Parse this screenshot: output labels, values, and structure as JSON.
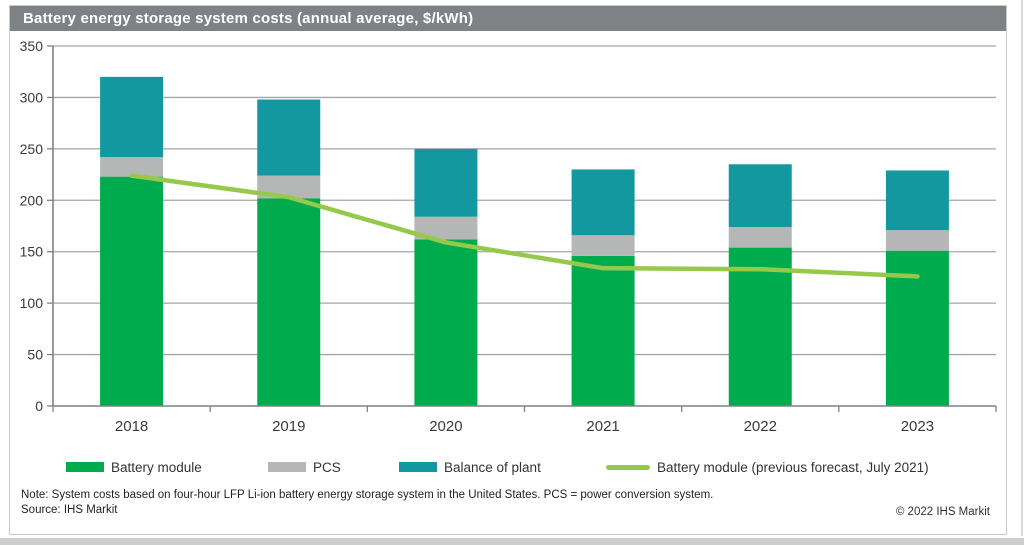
{
  "title": "Battery energy storage system costs (annual average, $/kWh)",
  "footer": {
    "note": "Note: System costs based on four-hour LFP Li-ion battery energy storage system in the United States. PCS = power conversion system.",
    "source": "Source: IHS Markit",
    "copyright": "© 2022 IHS Markit"
  },
  "colors": {
    "banner_bg": "#7f8285",
    "banner_text": "#ffffff",
    "battery_module": "#00ab4e",
    "pcs": "#b4b7b6",
    "balance_of_plant": "#14989f",
    "forecast_line": "#96c94b",
    "gridline": "#a4a6a5",
    "axis": "#7f8283",
    "tick_text": "#3a3a3a"
  },
  "chart_data": {
    "type": "bar",
    "subtype": "stacked-bars-with-line-overlay",
    "title": "Battery energy storage system costs (annual average, $/kWh)",
    "categories": [
      "2018",
      "2019",
      "2020",
      "2021",
      "2022",
      "2023"
    ],
    "series": [
      {
        "name": "Battery module",
        "type": "bar",
        "color_key": "battery_module",
        "values": [
          223,
          202,
          162,
          146,
          154,
          151
        ]
      },
      {
        "name": "PCS",
        "type": "bar",
        "color_key": "pcs",
        "values": [
          19,
          22,
          22,
          20,
          20,
          20
        ]
      },
      {
        "name": "Balance of plant",
        "type": "bar",
        "color_key": "balance_of_plant",
        "values": [
          78,
          74,
          66,
          64,
          61,
          58
        ]
      },
      {
        "name": "Battery module (previous forecast, July 2021)",
        "type": "line",
        "color_key": "forecast_line",
        "values": [
          224,
          203,
          159,
          134,
          133,
          126
        ]
      }
    ],
    "stack_totals": [
      320,
      298,
      250,
      230,
      235,
      229
    ],
    "xlabel": "",
    "ylabel": "",
    "ylim": [
      0,
      350
    ],
    "ytick_interval": 50,
    "grid": true,
    "legend_position": "bottom"
  },
  "legend": {
    "items": [
      {
        "label": "Battery module",
        "swatch": "rect",
        "color_key": "battery_module"
      },
      {
        "label": "PCS",
        "swatch": "rect",
        "color_key": "pcs"
      },
      {
        "label": "Balance of plant",
        "swatch": "rect",
        "color_key": "balance_of_plant"
      },
      {
        "label": "Battery module (previous forecast, July 2021)",
        "swatch": "line",
        "color_key": "forecast_line"
      }
    ]
  }
}
